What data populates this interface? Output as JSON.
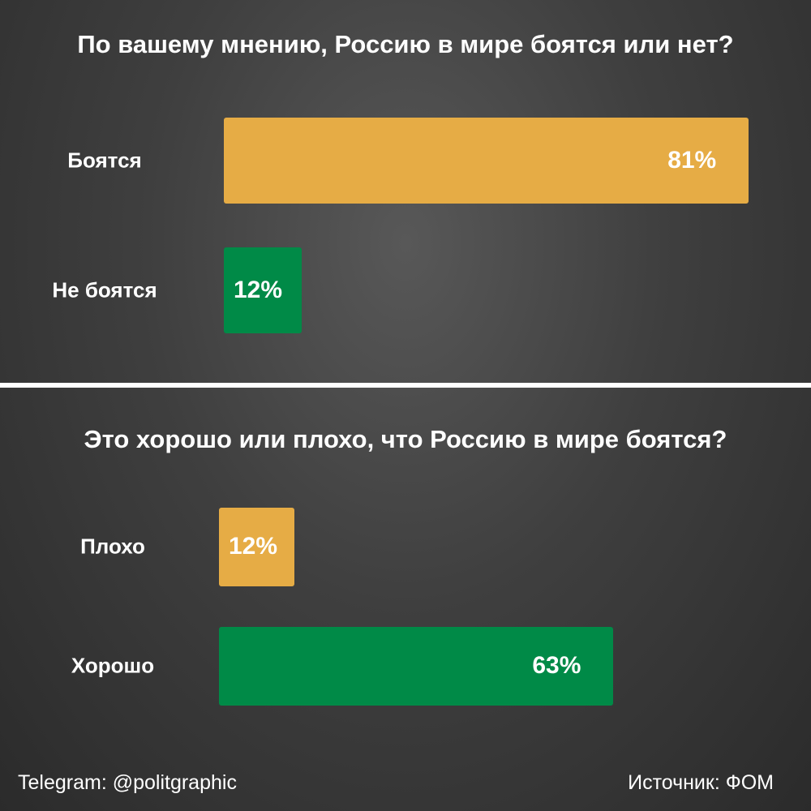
{
  "colors": {
    "gold": "#e6ac45",
    "green": "#008a47",
    "divider": "#ffffff"
  },
  "footer": {
    "telegram": "Telegram: @politgraphic",
    "source": "Источник: ФОМ"
  },
  "chart_data": [
    {
      "type": "bar",
      "title": "По вашему мнению, Россию в мире боятся или нет?",
      "categories": [
        "Боятся",
        "Не боятся"
      ],
      "values": [
        81,
        12
      ],
      "value_labels": [
        "81%",
        "12%"
      ],
      "bar_colors": [
        "#e6ac45",
        "#008a47"
      ],
      "xlim": [
        0,
        100
      ],
      "orientation": "horizontal"
    },
    {
      "type": "bar",
      "title": "Это хорошо или плохо, что Россию в мире боятся?",
      "categories": [
        "Плохо",
        "Хорошо"
      ],
      "values": [
        12,
        63
      ],
      "value_labels": [
        "12%",
        "63%"
      ],
      "bar_colors": [
        "#e6ac45",
        "#008a47"
      ],
      "xlim": [
        0,
        100
      ],
      "orientation": "horizontal"
    }
  ]
}
